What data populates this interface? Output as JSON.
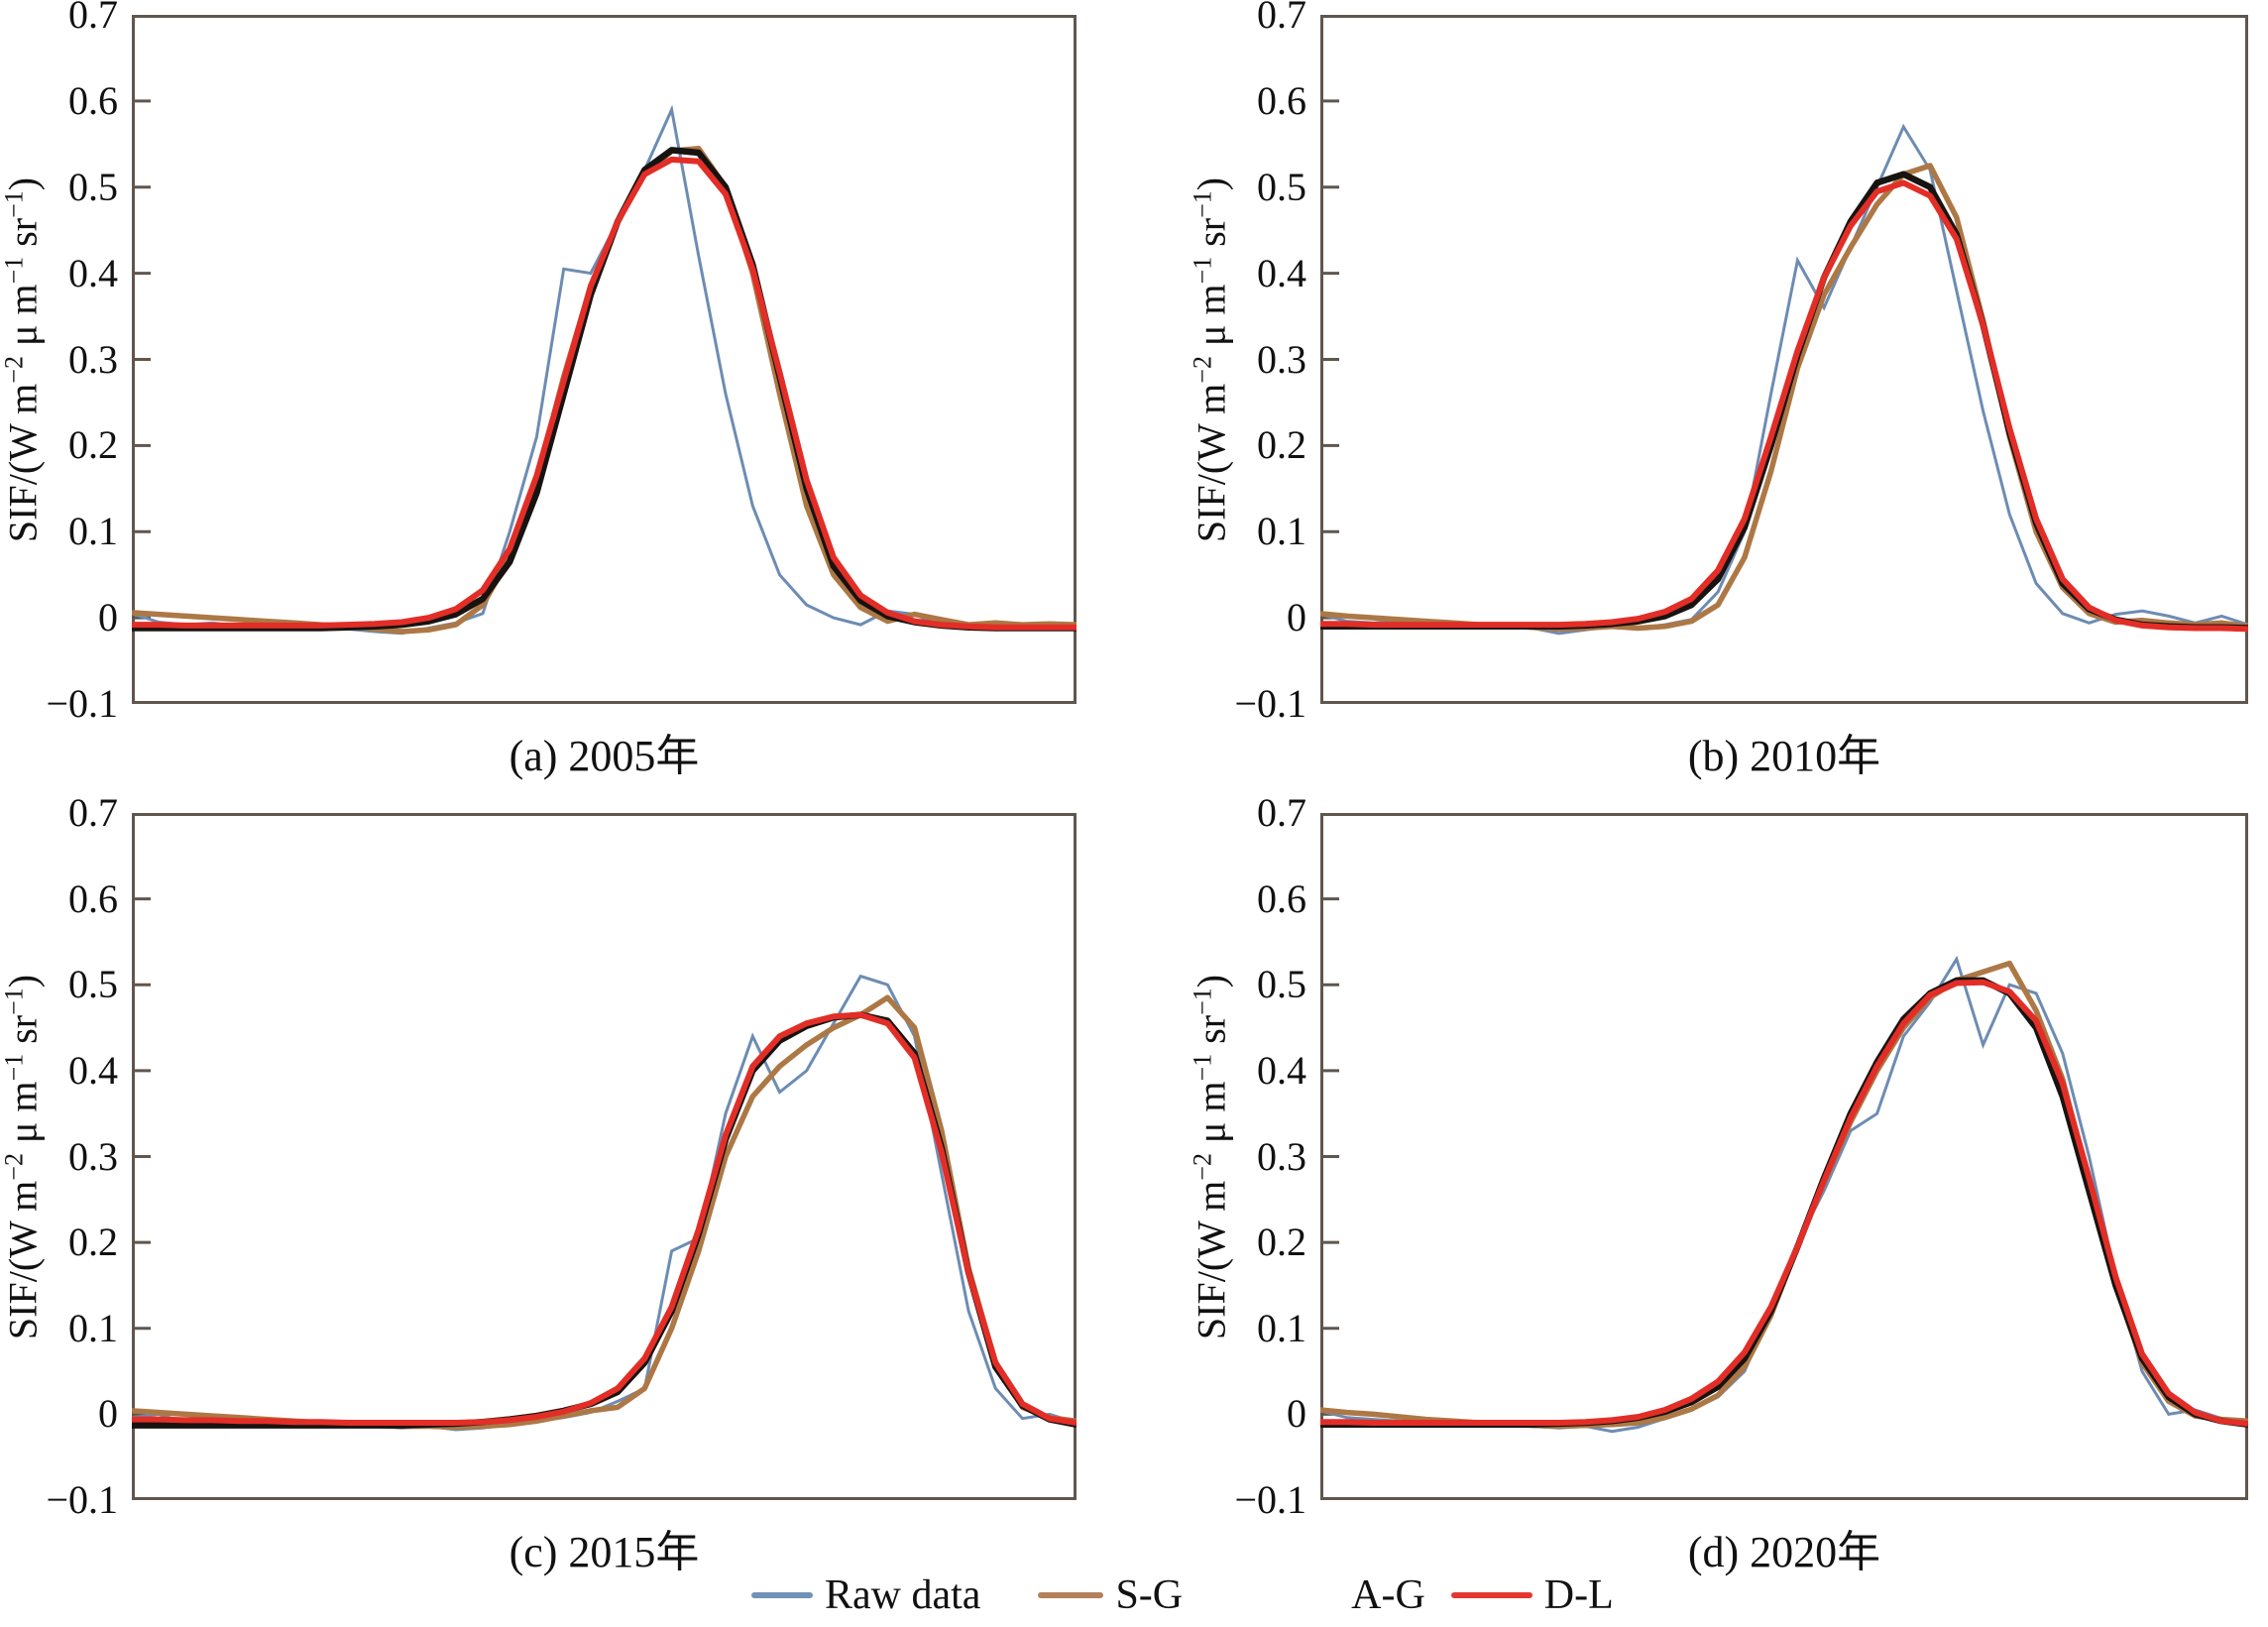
{
  "y_axis": {
    "label": "SIF/(W m⁻² μ m⁻¹ sr⁻¹)",
    "label_segments": [
      {
        "t": "SIF/(W m"
      },
      {
        "t": "−2",
        "sup": true
      },
      {
        "t": " μ m"
      },
      {
        "t": "−1",
        "sup": true
      },
      {
        "t": " sr"
      },
      {
        "t": "−1",
        "sup": true
      },
      {
        "t": ")"
      }
    ],
    "tick_labels": [
      "0.7",
      "0.6",
      "0.5",
      "0.4",
      "0.3",
      "0.2",
      "0.1",
      "0",
      "−0.1"
    ],
    "tick_values": [
      0.7,
      0.6,
      0.5,
      0.4,
      0.3,
      0.2,
      0.1,
      0,
      -0.1
    ],
    "ylim": [
      -0.1,
      0.7
    ]
  },
  "legend": {
    "items": [
      {
        "label": "Raw data",
        "color": "#7191b7",
        "swatch": true
      },
      {
        "label": "S-G",
        "color": "#b3805a",
        "swatch": true
      },
      {
        "label": "A-G",
        "color": "#171310",
        "swatch": false
      },
      {
        "label": "D-L",
        "color": "#e43630",
        "swatch": true
      }
    ]
  },
  "colors": {
    "axis_border": "#5f564e",
    "raw": "#6d8cb3",
    "sg": "#ad7845",
    "ag": "#171310",
    "dl": "#e22e27"
  },
  "chart_data": [
    {
      "id": "a",
      "caption": "(a) 2005年",
      "type": "line",
      "title": "",
      "xlabel": "",
      "ylabel": "SIF/(W m⁻² μ m⁻¹ sr⁻¹)",
      "ylim": [
        -0.1,
        0.7
      ],
      "yticks": [
        0.7,
        0.6,
        0.5,
        0.4,
        0.3,
        0.2,
        0.1,
        0,
        -0.1
      ],
      "xticks": [],
      "grid": false,
      "series": [
        {
          "name": "Raw data",
          "values": [
            0.005,
            -0.005,
            -0.008,
            -0.006,
            -0.01,
            -0.008,
            -0.012,
            -0.01,
            -0.013,
            -0.016,
            -0.018,
            -0.012,
            -0.006,
            0.005,
            0.1,
            0.21,
            0.405,
            0.4,
            0.46,
            0.52,
            0.59,
            0.42,
            0.26,
            0.13,
            0.05,
            0.015,
            0.0,
            -0.008,
            0.008,
            0.004,
            -0.01,
            -0.012,
            -0.01,
            -0.012,
            -0.01,
            -0.012
          ]
        },
        {
          "name": "S-G",
          "values": [
            0.006,
            0.004,
            0.002,
            0.0,
            -0.002,
            -0.004,
            -0.006,
            -0.008,
            -0.01,
            -0.013,
            -0.016,
            -0.014,
            -0.008,
            0.015,
            0.07,
            0.16,
            0.28,
            0.385,
            0.46,
            0.515,
            0.542,
            0.545,
            0.5,
            0.4,
            0.26,
            0.13,
            0.05,
            0.012,
            -0.004,
            0.004,
            -0.002,
            -0.008,
            -0.006,
            -0.008,
            -0.007,
            -0.008
          ]
        },
        {
          "name": "A-G",
          "values": [
            -0.012,
            -0.012,
            -0.012,
            -0.012,
            -0.012,
            -0.012,
            -0.012,
            -0.012,
            -0.011,
            -0.01,
            -0.008,
            -0.004,
            0.004,
            0.022,
            0.065,
            0.145,
            0.26,
            0.375,
            0.46,
            0.52,
            0.543,
            0.54,
            0.5,
            0.41,
            0.28,
            0.15,
            0.06,
            0.02,
            0.002,
            -0.005,
            -0.009,
            -0.011,
            -0.012,
            -0.012,
            -0.012,
            -0.012
          ]
        },
        {
          "name": "D-L",
          "values": [
            -0.008,
            -0.008,
            -0.009,
            -0.009,
            -0.009,
            -0.009,
            -0.009,
            -0.009,
            -0.008,
            -0.007,
            -0.005,
            0.0,
            0.01,
            0.032,
            0.08,
            0.165,
            0.275,
            0.385,
            0.46,
            0.515,
            0.532,
            0.53,
            0.492,
            0.405,
            0.285,
            0.16,
            0.07,
            0.026,
            0.006,
            -0.004,
            -0.008,
            -0.01,
            -0.011,
            -0.011,
            -0.011,
            -0.011
          ]
        }
      ]
    },
    {
      "id": "b",
      "caption": "(b) 2010年",
      "type": "line",
      "title": "",
      "xlabel": "",
      "ylabel": "SIF/(W m⁻² μ m⁻¹ sr⁻¹)",
      "ylim": [
        -0.1,
        0.7
      ],
      "yticks": [
        0.7,
        0.6,
        0.5,
        0.4,
        0.3,
        0.2,
        0.1,
        0,
        -0.1
      ],
      "xticks": [],
      "grid": false,
      "series": [
        {
          "name": "Raw data",
          "values": [
            0.004,
            -0.004,
            -0.006,
            -0.004,
            -0.008,
            -0.006,
            -0.01,
            -0.008,
            -0.012,
            -0.018,
            -0.014,
            -0.01,
            -0.012,
            -0.008,
            -0.002,
            0.03,
            0.1,
            0.26,
            0.415,
            0.36,
            0.43,
            0.5,
            0.57,
            0.52,
            0.38,
            0.24,
            0.12,
            0.04,
            0.005,
            -0.006,
            0.004,
            0.008,
            0.002,
            -0.006,
            0.002,
            -0.008
          ]
        },
        {
          "name": "S-G",
          "values": [
            0.005,
            0.002,
            0.0,
            -0.002,
            -0.004,
            -0.006,
            -0.008,
            -0.009,
            -0.011,
            -0.013,
            -0.012,
            -0.01,
            -0.012,
            -0.01,
            -0.004,
            0.015,
            0.07,
            0.17,
            0.29,
            0.375,
            0.43,
            0.48,
            0.515,
            0.525,
            0.465,
            0.345,
            0.21,
            0.1,
            0.035,
            0.005,
            -0.005,
            -0.003,
            -0.006,
            -0.008,
            -0.006,
            -0.01
          ]
        },
        {
          "name": "A-G",
          "values": [
            -0.01,
            -0.01,
            -0.01,
            -0.01,
            -0.01,
            -0.01,
            -0.01,
            -0.01,
            -0.01,
            -0.01,
            -0.009,
            -0.007,
            -0.004,
            0.002,
            0.015,
            0.045,
            0.105,
            0.2,
            0.305,
            0.395,
            0.46,
            0.505,
            0.515,
            0.5,
            0.445,
            0.34,
            0.215,
            0.11,
            0.04,
            0.01,
            -0.002,
            -0.008,
            -0.01,
            -0.011,
            -0.011,
            -0.012
          ]
        },
        {
          "name": "D-L",
          "values": [
            -0.007,
            -0.007,
            -0.008,
            -0.008,
            -0.008,
            -0.008,
            -0.008,
            -0.008,
            -0.008,
            -0.008,
            -0.007,
            -0.005,
            -0.001,
            0.007,
            0.022,
            0.055,
            0.115,
            0.21,
            0.31,
            0.395,
            0.455,
            0.495,
            0.505,
            0.49,
            0.44,
            0.34,
            0.22,
            0.115,
            0.045,
            0.012,
            -0.003,
            -0.009,
            -0.011,
            -0.012,
            -0.012,
            -0.013
          ]
        }
      ]
    },
    {
      "id": "c",
      "caption": "(c) 2015年",
      "type": "line",
      "title": "",
      "xlabel": "",
      "ylabel": "SIF/(W m⁻² μ m⁻¹ sr⁻¹)",
      "ylim": [
        -0.1,
        0.7
      ],
      "yticks": [
        0.7,
        0.6,
        0.5,
        0.4,
        0.3,
        0.2,
        0.1,
        0,
        -0.1
      ],
      "xticks": [],
      "grid": false,
      "series": [
        {
          "name": "Raw data",
          "values": [
            -0.004,
            0.0,
            -0.01,
            -0.008,
            -0.005,
            -0.008,
            -0.01,
            -0.008,
            -0.012,
            -0.014,
            -0.016,
            -0.014,
            -0.018,
            -0.016,
            -0.012,
            -0.008,
            -0.004,
            0.002,
            0.015,
            0.03,
            0.19,
            0.205,
            0.35,
            0.44,
            0.375,
            0.4,
            0.455,
            0.51,
            0.5,
            0.44,
            0.28,
            0.12,
            0.03,
            -0.005,
            0.0,
            -0.01
          ]
        },
        {
          "name": "S-G",
          "values": [
            0.004,
            0.002,
            0.0,
            -0.002,
            -0.004,
            -0.006,
            -0.008,
            -0.01,
            -0.012,
            -0.013,
            -0.014,
            -0.014,
            -0.015,
            -0.014,
            -0.012,
            -0.008,
            -0.002,
            0.004,
            0.008,
            0.03,
            0.1,
            0.19,
            0.3,
            0.37,
            0.405,
            0.43,
            0.45,
            0.465,
            0.485,
            0.45,
            0.33,
            0.17,
            0.06,
            0.008,
            -0.004,
            -0.008
          ]
        },
        {
          "name": "A-G",
          "values": [
            -0.013,
            -0.013,
            -0.013,
            -0.013,
            -0.013,
            -0.013,
            -0.013,
            -0.013,
            -0.013,
            -0.013,
            -0.013,
            -0.012,
            -0.011,
            -0.009,
            -0.006,
            -0.002,
            0.004,
            0.012,
            0.026,
            0.06,
            0.12,
            0.21,
            0.32,
            0.4,
            0.435,
            0.452,
            0.462,
            0.465,
            0.458,
            0.42,
            0.31,
            0.165,
            0.055,
            0.01,
            -0.006,
            -0.012
          ]
        },
        {
          "name": "D-L",
          "values": [
            -0.006,
            -0.006,
            -0.007,
            -0.007,
            -0.008,
            -0.008,
            -0.009,
            -0.009,
            -0.01,
            -0.01,
            -0.01,
            -0.01,
            -0.01,
            -0.009,
            -0.007,
            -0.003,
            0.003,
            0.013,
            0.03,
            0.065,
            0.125,
            0.215,
            0.325,
            0.405,
            0.44,
            0.455,
            0.463,
            0.465,
            0.455,
            0.415,
            0.305,
            0.165,
            0.06,
            0.012,
            -0.005,
            -0.01
          ]
        }
      ]
    },
    {
      "id": "d",
      "caption": "(d) 2020年",
      "type": "line",
      "title": "",
      "xlabel": "",
      "ylabel": "SIF/(W m⁻² μ m⁻¹ sr⁻¹)",
      "ylim": [
        -0.1,
        0.7
      ],
      "yticks": [
        0.7,
        0.6,
        0.5,
        0.4,
        0.3,
        0.2,
        0.1,
        0,
        -0.1
      ],
      "xticks": [],
      "grid": false,
      "series": [
        {
          "name": "Raw data",
          "values": [
            0.004,
            -0.004,
            -0.006,
            -0.008,
            -0.01,
            -0.008,
            -0.012,
            -0.01,
            -0.014,
            -0.016,
            -0.014,
            -0.02,
            -0.015,
            -0.005,
            0.005,
            0.02,
            0.05,
            0.12,
            0.2,
            0.26,
            0.33,
            0.35,
            0.44,
            0.48,
            0.53,
            0.43,
            0.5,
            0.49,
            0.42,
            0.3,
            0.16,
            0.05,
            0.0,
            0.005,
            -0.005,
            -0.01
          ]
        },
        {
          "name": "S-G",
          "values": [
            0.005,
            0.002,
            0.0,
            -0.003,
            -0.006,
            -0.008,
            -0.01,
            -0.011,
            -0.013,
            -0.014,
            -0.013,
            -0.012,
            -0.01,
            -0.004,
            0.006,
            0.022,
            0.055,
            0.115,
            0.195,
            0.27,
            0.34,
            0.4,
            0.45,
            0.485,
            0.505,
            0.515,
            0.525,
            0.47,
            0.39,
            0.27,
            0.15,
            0.06,
            0.015,
            -0.002,
            -0.006,
            -0.008
          ]
        },
        {
          "name": "A-G",
          "values": [
            -0.012,
            -0.012,
            -0.012,
            -0.012,
            -0.012,
            -0.012,
            -0.012,
            -0.012,
            -0.012,
            -0.011,
            -0.01,
            -0.008,
            -0.004,
            0.003,
            0.014,
            0.032,
            0.065,
            0.12,
            0.195,
            0.275,
            0.35,
            0.41,
            0.46,
            0.49,
            0.505,
            0.505,
            0.49,
            0.45,
            0.37,
            0.26,
            0.15,
            0.065,
            0.02,
            0.0,
            -0.008,
            -0.012
          ]
        },
        {
          "name": "D-L",
          "values": [
            -0.009,
            -0.009,
            -0.01,
            -0.01,
            -0.01,
            -0.01,
            -0.01,
            -0.01,
            -0.01,
            -0.01,
            -0.009,
            -0.007,
            -0.003,
            0.005,
            0.018,
            0.038,
            0.072,
            0.125,
            0.195,
            0.272,
            0.345,
            0.405,
            0.455,
            0.488,
            0.502,
            0.503,
            0.492,
            0.458,
            0.385,
            0.275,
            0.16,
            0.07,
            0.024,
            0.002,
            -0.008,
            -0.011
          ]
        }
      ]
    }
  ]
}
